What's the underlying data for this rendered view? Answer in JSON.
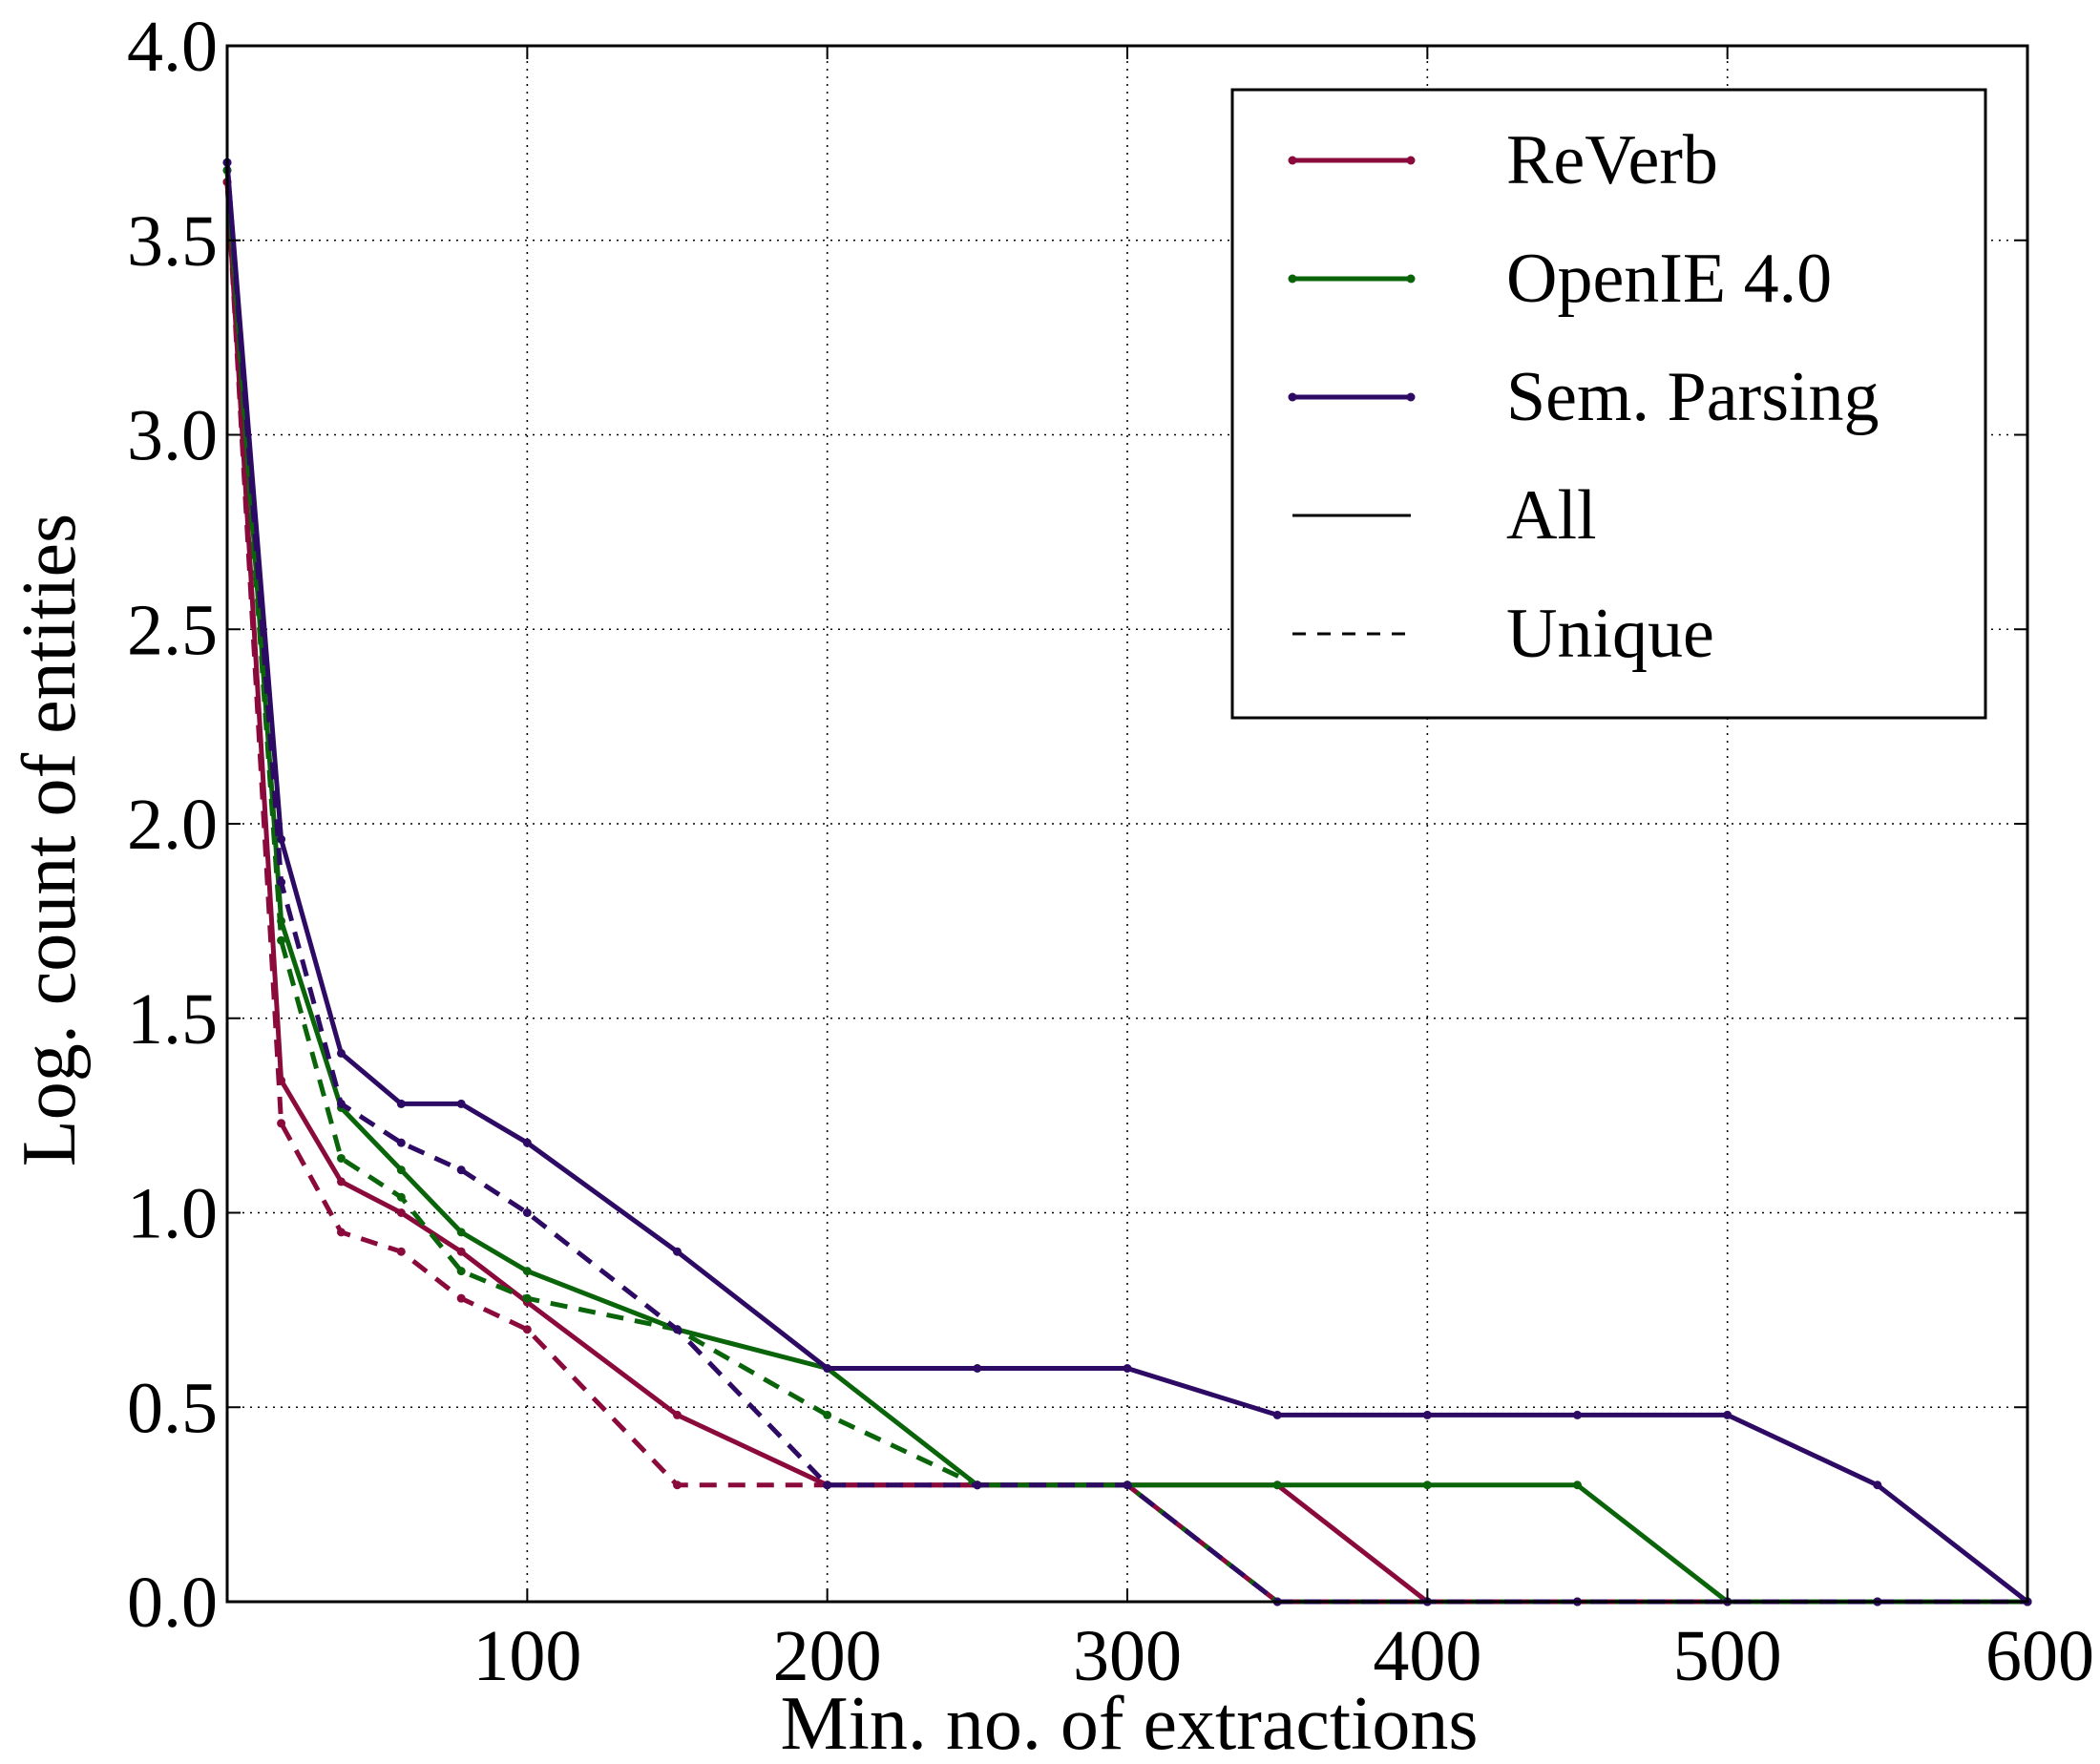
{
  "chart_data": {
    "type": "line",
    "title": "",
    "xlabel": "Min. no. of extractions",
    "ylabel": "Log. count of entities",
    "xlim": [
      0,
      600
    ],
    "ylim": [
      0.0,
      4.0
    ],
    "xticks": [
      100,
      200,
      300,
      400,
      500,
      600
    ],
    "xtick_labels": [
      "100",
      "200",
      "300",
      "400",
      "500",
      "600"
    ],
    "yticks": [
      0.0,
      0.5,
      1.0,
      1.5,
      2.0,
      2.5,
      3.0,
      3.5,
      4.0
    ],
    "ytick_labels": [
      "0.0",
      "0.5",
      "1.0",
      "1.5",
      "2.0",
      "2.5",
      "3.0",
      "3.5",
      "4.0"
    ],
    "grid": true,
    "legend_position": "top-right",
    "legend": [
      {
        "label": "ReVerb",
        "color": "#8b0a3c",
        "style": "solid",
        "marker": true
      },
      {
        "label": "OpenIE 4.0",
        "color": "#0a640a",
        "style": "solid",
        "marker": true
      },
      {
        "label": "Sem. Parsing",
        "color": "#2d0a64",
        "style": "solid",
        "marker": true
      },
      {
        "label": "All",
        "color": "#000000",
        "style": "solid",
        "marker": false
      },
      {
        "label": "Unique",
        "color": "#000000",
        "style": "dashed",
        "marker": false
      }
    ],
    "series": [
      {
        "system": "ReVerb",
        "kind": "All",
        "color": "#8b0a3c",
        "dashed": false,
        "x": [
          0,
          18,
          38,
          58,
          78,
          100,
          150,
          200,
          250,
          300,
          350,
          400,
          450,
          500,
          550,
          600
        ],
        "y": [
          3.65,
          1.34,
          1.08,
          1.0,
          0.9,
          0.77,
          0.48,
          0.3,
          0.3,
          0.3,
          0.3,
          0.0,
          0.0,
          0.0,
          0.0,
          0.0
        ]
      },
      {
        "system": "ReVerb",
        "kind": "Unique",
        "color": "#8b0a3c",
        "dashed": true,
        "x": [
          0,
          18,
          38,
          58,
          78,
          100,
          150,
          200,
          250,
          300,
          350,
          400,
          450,
          500,
          550,
          600
        ],
        "y": [
          3.65,
          1.23,
          0.95,
          0.9,
          0.78,
          0.7,
          0.3,
          0.3,
          0.3,
          0.3,
          0.0,
          0.0,
          0.0,
          0.0,
          0.0,
          0.0
        ]
      },
      {
        "system": "OpenIE 4.0",
        "kind": "All",
        "color": "#0a640a",
        "dashed": false,
        "x": [
          0,
          18,
          38,
          58,
          78,
          100,
          150,
          200,
          250,
          300,
          350,
          400,
          450,
          500,
          550,
          600
        ],
        "y": [
          3.68,
          1.75,
          1.27,
          1.11,
          0.95,
          0.85,
          0.7,
          0.6,
          0.3,
          0.3,
          0.3,
          0.3,
          0.3,
          0.0,
          0.0,
          0.0
        ]
      },
      {
        "system": "OpenIE 4.0",
        "kind": "Unique",
        "color": "#0a640a",
        "dashed": true,
        "x": [
          0,
          18,
          38,
          58,
          78,
          100,
          150,
          200,
          250,
          300,
          350,
          400,
          450,
          500,
          550,
          600
        ],
        "y": [
          3.68,
          1.7,
          1.14,
          1.04,
          0.85,
          0.78,
          0.7,
          0.48,
          0.3,
          0.3,
          0.0,
          0.0,
          0.0,
          0.0,
          0.0,
          0.0
        ]
      },
      {
        "system": "Sem. Parsing",
        "kind": "All",
        "color": "#2d0a64",
        "dashed": false,
        "x": [
          0,
          18,
          38,
          58,
          78,
          100,
          150,
          200,
          250,
          300,
          350,
          400,
          450,
          500,
          550,
          600
        ],
        "y": [
          3.7,
          1.96,
          1.41,
          1.28,
          1.28,
          1.18,
          0.9,
          0.6,
          0.6,
          0.6,
          0.48,
          0.48,
          0.48,
          0.48,
          0.3,
          0.0
        ]
      },
      {
        "system": "Sem. Parsing",
        "kind": "Unique",
        "color": "#2d0a64",
        "dashed": true,
        "x": [
          0,
          18,
          38,
          58,
          78,
          100,
          150,
          200,
          250,
          300,
          350,
          400,
          450,
          500,
          550,
          600
        ],
        "y": [
          3.7,
          1.85,
          1.28,
          1.18,
          1.11,
          1.0,
          0.7,
          0.3,
          0.3,
          0.3,
          0.0,
          0.0,
          0.0,
          0.0,
          0.0,
          0.0
        ]
      }
    ]
  }
}
